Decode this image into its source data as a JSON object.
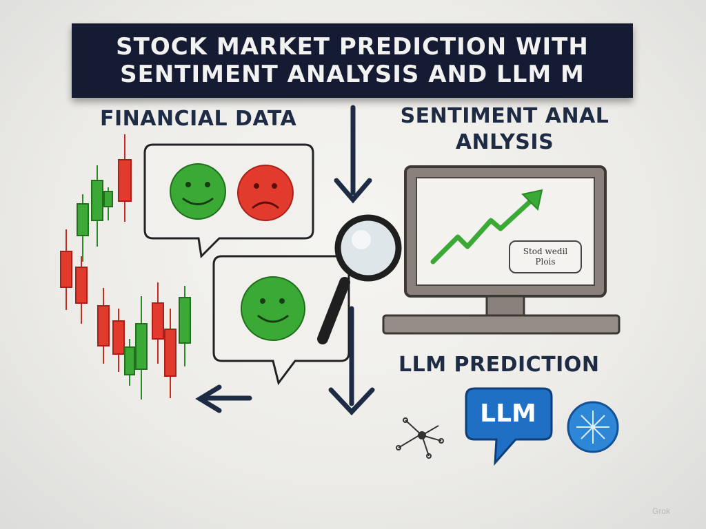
{
  "title": {
    "line1": "STOCK MARKET PREDICTION WITH",
    "line2": "SENTIMENT ANALYSIS AND LLM M"
  },
  "sections": {
    "financial_data": "FINANCIAL DATA",
    "sentiment_line1": "SENTIMENT ANAL",
    "sentiment_line2": "ANLYSIS",
    "llm_prediction": "LLM PREDICTION"
  },
  "monitor": {
    "note_line1": "Stod wedil",
    "note_line2": "Plois"
  },
  "llm_badge": "LLM",
  "watermark": "Grok",
  "colors": {
    "banner": "#141b33",
    "bullish_green": "#3aa935",
    "bearish_red": "#e23b2e",
    "llm_blue": "#1f6fc4",
    "arrow_navy": "#1e2b44"
  },
  "icons": [
    "candlestick-chart-icon",
    "happy-face-icon",
    "sad-face-icon",
    "magnifying-glass-icon",
    "monitor-icon",
    "trend-up-arrow-icon",
    "llm-chat-bubble-icon",
    "network-node-icon",
    "neural-globe-icon"
  ]
}
